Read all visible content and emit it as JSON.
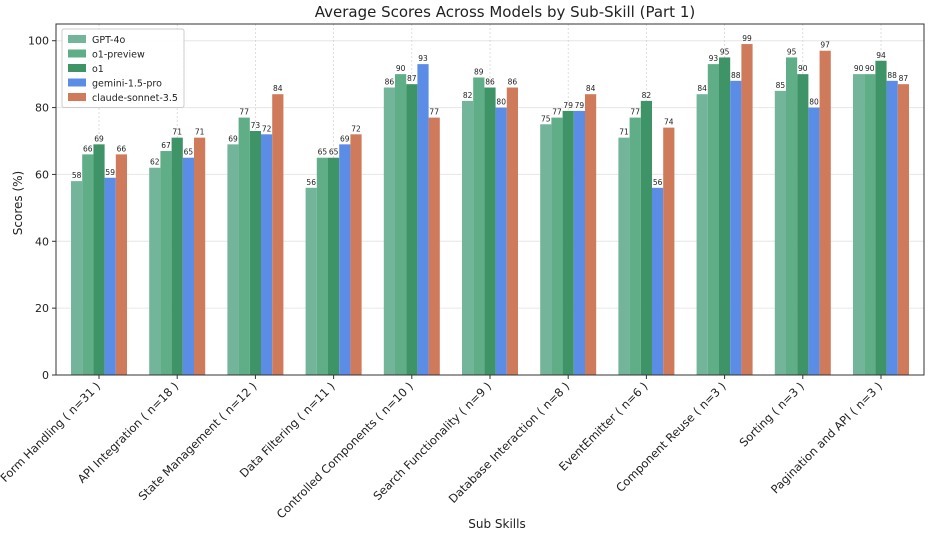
{
  "chart_data": {
    "type": "bar",
    "title": "Average Scores Across Models by Sub-Skill (Part 1)",
    "xlabel": "Sub Skills",
    "ylabel": "Scores (%)",
    "ylim": [
      0,
      105
    ],
    "yticks": [
      0,
      20,
      40,
      60,
      80,
      100
    ],
    "grid": true,
    "legend_position": "top-left",
    "categories": [
      "Form Handling ( n=31 )",
      "API Integration ( n=18 )",
      "State Management ( n=12 )",
      "Data Filtering ( n=11 )",
      "Controlled Components ( n=10 )",
      "Search Functionality ( n=9 )",
      "Database Interaction ( n=8 )",
      "EventEmitter ( n=6 )",
      "Component Reuse ( n=3 )",
      "Sorting ( n=3 )",
      "Pagination and API ( n=3 )"
    ],
    "series": [
      {
        "name": "GPT-4o",
        "color": "#72b59a",
        "values": [
          58,
          62,
          69,
          56,
          86,
          82,
          75,
          71,
          84,
          85,
          90
        ]
      },
      {
        "name": "o1-preview",
        "color": "#5fae87",
        "values": [
          66,
          67,
          77,
          65,
          90,
          89,
          77,
          77,
          93,
          95,
          90
        ]
      },
      {
        "name": "o1",
        "color": "#3f9467",
        "values": [
          69,
          71,
          73,
          65,
          87,
          86,
          79,
          82,
          95,
          90,
          94
        ]
      },
      {
        "name": "gemini-1.5-pro",
        "color": "#5b8de6",
        "values": [
          59,
          65,
          72,
          69,
          93,
          80,
          79,
          56,
          88,
          80,
          88
        ]
      },
      {
        "name": "claude-sonnet-3.5",
        "color": "#d07a5c",
        "values": [
          66,
          71,
          84,
          72,
          77,
          86,
          84,
          74,
          99,
          97,
          87
        ]
      }
    ]
  }
}
